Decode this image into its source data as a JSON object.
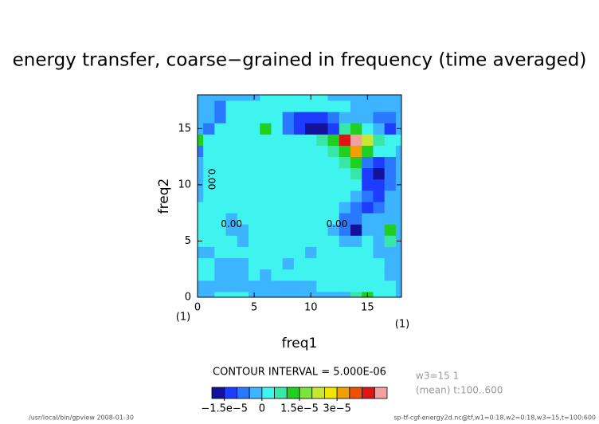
{
  "chart_data": {
    "type": "contour",
    "title": "energy transfer, coarse−grained in frequency (time averaged)",
    "xlabel": "freq1",
    "ylabel": "freq2",
    "xunit": "(1)",
    "yunit": "(1)",
    "xlim": [
      0,
      18
    ],
    "ylim": [
      0,
      18
    ],
    "xticks": [
      0,
      5,
      10,
      15
    ],
    "yticks": [
      0,
      5,
      10,
      15
    ],
    "levels": [
      -1.5e-05,
      -1e-05,
      -5e-06,
      0,
      5e-06,
      1e-05,
      1.5e-05,
      2e-05,
      2.5e-05,
      3e-05,
      3.5e-05,
      4e-05,
      4.5e-05
    ],
    "colors": [
      "#12129a",
      "#1e3cff",
      "#2a78ff",
      "#3cb4ff",
      "#3ff3ee",
      "#38e6a8",
      "#20d020",
      "#7ce43c",
      "#c8e632",
      "#f0e600",
      "#f0a000",
      "#f05000",
      "#e01414",
      "#f5a0a0"
    ],
    "colorbar_ticks": [
      {
        "value": -1.5e-05,
        "label": "−1.5e−5"
      },
      {
        "value": 0,
        "label": "0"
      },
      {
        "value": 1.5e-05,
        "label": "1.5e−5"
      },
      {
        "value": 3e-05,
        "label": "3e−5"
      }
    ],
    "contour_labels": [
      "0.00",
      "0.00",
      "0.00"
    ],
    "contour_interval_label": "CONTOUR INTERVAL = 5.000E-06",
    "notes": [
      "w3=15 1",
      "(mean) t:100..600"
    ],
    "footer_left": "/usr/local/bin/gpview  2008-01-30",
    "footer_right": "sp-tf-cgf-energy2d.nc@tf,w1=0:18,w2=0:18,w3=15,t=100:600",
    "z": [
      [
        -2e-06,
        -2e-06,
        2e-06,
        2e-06,
        2e-06,
        -2e-06,
        -2e-06,
        -2e-06,
        -2e-06,
        -2e-06,
        -2e-06,
        -2e-06,
        -2e-06,
        -2e-06,
        7e-06,
        1.2e-05,
        2e-06,
        2e-06,
        -2e-06
      ],
      [
        -2e-06,
        -2e-06,
        -2e-06,
        -2e-06,
        -2e-06,
        -2e-06,
        -2e-06,
        -2e-06,
        -2e-06,
        -2e-06,
        -2e-06,
        2e-06,
        2e-06,
        2e-06,
        2e-06,
        2e-06,
        2e-06,
        2e-06,
        -2e-06
      ],
      [
        2e-06,
        2e-06,
        -2e-06,
        -2e-06,
        -2e-06,
        2e-06,
        -2e-06,
        2e-06,
        2e-06,
        2e-06,
        2e-06,
        2e-06,
        2e-06,
        2e-06,
        2e-06,
        2e-06,
        2e-06,
        -2e-06,
        -2e-06
      ],
      [
        2e-06,
        2e-06,
        -2e-06,
        -2e-06,
        -2e-06,
        2e-06,
        2e-06,
        2e-06,
        -2e-06,
        2e-06,
        2e-06,
        2e-06,
        2e-06,
        2e-06,
        2e-06,
        2e-06,
        2e-06,
        -2e-06,
        -2e-06
      ],
      [
        -2e-06,
        -2e-06,
        2e-06,
        2e-06,
        2e-06,
        2e-06,
        2e-06,
        2e-06,
        2e-06,
        2e-06,
        -2e-06,
        2e-06,
        2e-06,
        2e-06,
        2e-06,
        2e-06,
        -2e-06,
        -2e-06,
        -2e-06
      ],
      [
        2e-06,
        2e-06,
        2e-06,
        2e-06,
        -2e-06,
        2e-06,
        2e-06,
        2e-06,
        2e-06,
        2e-06,
        2e-06,
        2e-06,
        2e-06,
        -2e-06,
        -2e-06,
        2e-06,
        -2e-06,
        7e-06,
        -2e-06
      ],
      [
        2e-06,
        2e-06,
        2e-06,
        -2e-06,
        -2e-06,
        2e-06,
        2e-06,
        2e-06,
        2e-06,
        2e-06,
        2e-06,
        2e-06,
        -2e-06,
        -7e-06,
        -1.8e-05,
        -2e-06,
        -2e-06,
        1.2e-05,
        -2e-06
      ],
      [
        2e-06,
        2e-06,
        2e-06,
        -2e-06,
        2e-06,
        2e-06,
        2e-06,
        2e-06,
        2e-06,
        2e-06,
        2e-06,
        2e-06,
        2e-06,
        -7e-06,
        -7e-06,
        -2e-06,
        -2e-06,
        -2e-06,
        -2e-06
      ],
      [
        2e-06,
        2e-06,
        2e-06,
        2e-06,
        2e-06,
        2e-06,
        2e-06,
        2e-06,
        2e-06,
        2e-06,
        2e-06,
        2e-06,
        2e-06,
        -2e-06,
        -7e-06,
        -1.2e-05,
        -7e-06,
        -2e-06,
        -2e-06
      ],
      [
        -2e-06,
        2e-06,
        2e-06,
        2e-06,
        2e-06,
        2e-06,
        2e-06,
        2e-06,
        2e-06,
        2e-06,
        2e-06,
        2e-06,
        2e-06,
        2e-06,
        -2e-06,
        -7e-06,
        -1.2e-05,
        -2e-06,
        -2e-06
      ],
      [
        -2e-06,
        2e-06,
        2e-06,
        2e-06,
        2e-06,
        2e-06,
        2e-06,
        2e-06,
        2e-06,
        2e-06,
        2e-06,
        2e-06,
        2e-06,
        2e-06,
        2e-06,
        -1.2e-05,
        -1.2e-05,
        -7e-06,
        -2e-06
      ],
      [
        -2e-06,
        2e-06,
        2e-06,
        2e-06,
        2e-06,
        2e-06,
        2e-06,
        2e-06,
        2e-06,
        2e-06,
        2e-06,
        2e-06,
        2e-06,
        2e-06,
        7e-06,
        -1.2e-05,
        -1.8e-05,
        -7e-06,
        -2e-06
      ],
      [
        -2e-06,
        2e-06,
        2e-06,
        2e-06,
        2e-06,
        2e-06,
        2e-06,
        2e-06,
        2e-06,
        2e-06,
        2e-06,
        2e-06,
        2e-06,
        7e-06,
        1.2e-05,
        -7e-06,
        -1.2e-05,
        -7e-06,
        -2e-06
      ],
      [
        -7e-06,
        2e-06,
        2e-06,
        2e-06,
        2e-06,
        2e-06,
        2e-06,
        2e-06,
        2e-06,
        2e-06,
        2e-06,
        2e-06,
        7e-06,
        1.2e-05,
        3.2e-05,
        1.2e-05,
        2e-06,
        2e-06,
        -2e-06
      ],
      [
        1.2e-05,
        2e-06,
        2e-06,
        2e-06,
        2e-06,
        2e-06,
        2e-06,
        2e-06,
        2e-06,
        2e-06,
        2e-06,
        7e-06,
        1.2e-05,
        4.2e-05,
        4.7e-05,
        2.2e-05,
        7e-06,
        2e-06,
        2e-06
      ],
      [
        -2e-06,
        -7e-06,
        2e-06,
        2e-06,
        2e-06,
        2e-06,
        1.2e-05,
        2e-06,
        -7e-06,
        -1.2e-05,
        -1.8e-05,
        -1.8e-05,
        -1.2e-05,
        7e-06,
        1.2e-05,
        2e-06,
        -2e-06,
        -1.2e-05,
        -2e-06
      ],
      [
        -2e-06,
        -2e-06,
        -7e-06,
        2e-06,
        2e-06,
        2e-06,
        2e-06,
        2e-06,
        -7e-06,
        -1.2e-05,
        -1.2e-05,
        -1.2e-05,
        -7e-06,
        -2e-06,
        -2e-06,
        -2e-06,
        -7e-06,
        -7e-06,
        -2e-06
      ],
      [
        -2e-06,
        -2e-06,
        -7e-06,
        2e-06,
        2e-06,
        2e-06,
        2e-06,
        2e-06,
        2e-06,
        2e-06,
        2e-06,
        2e-06,
        2e-06,
        2e-06,
        -2e-06,
        -2e-06,
        -2e-06,
        -2e-06,
        -2e-06
      ],
      [
        -2e-06,
        -2e-06,
        -2e-06,
        -2e-06,
        -2e-06,
        -2e-06,
        2e-06,
        2e-06,
        2e-06,
        2e-06,
        2e-06,
        2e-06,
        -2e-06,
        -2e-06,
        -2e-06,
        -2e-06,
        -2e-06,
        -2e-06,
        -2e-06
      ]
    ]
  }
}
